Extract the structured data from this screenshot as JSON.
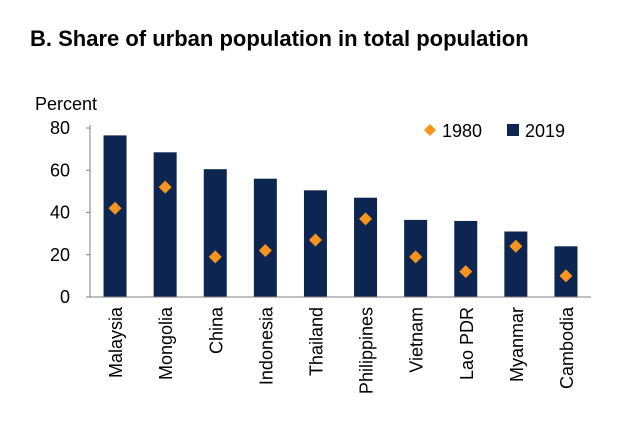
{
  "chart_data": {
    "type": "bar",
    "title": "B. Share of urban population in total population",
    "ylabel": "Percent",
    "xlabel": "",
    "ylim": [
      0,
      80
    ],
    "yticks": [
      0,
      20,
      40,
      60,
      80
    ],
    "grid": false,
    "legend_position": "top-right",
    "categories": [
      "Malaysia",
      "Mongolia",
      "China",
      "Indonesia",
      "Thailand",
      "Philippines",
      "Vietnam",
      "Lao PDR",
      "Myanmar",
      "Cambodia"
    ],
    "series": [
      {
        "name": "1980",
        "kind": "marker",
        "color": "#F7941D",
        "values": [
          42,
          52,
          19,
          22,
          27,
          37,
          19,
          12,
          24,
          10
        ]
      },
      {
        "name": "2019",
        "kind": "bar",
        "color": "#0C2551",
        "values": [
          76.5,
          68.5,
          60.5,
          56,
          50.5,
          47,
          36.5,
          36,
          31,
          24
        ]
      }
    ]
  }
}
